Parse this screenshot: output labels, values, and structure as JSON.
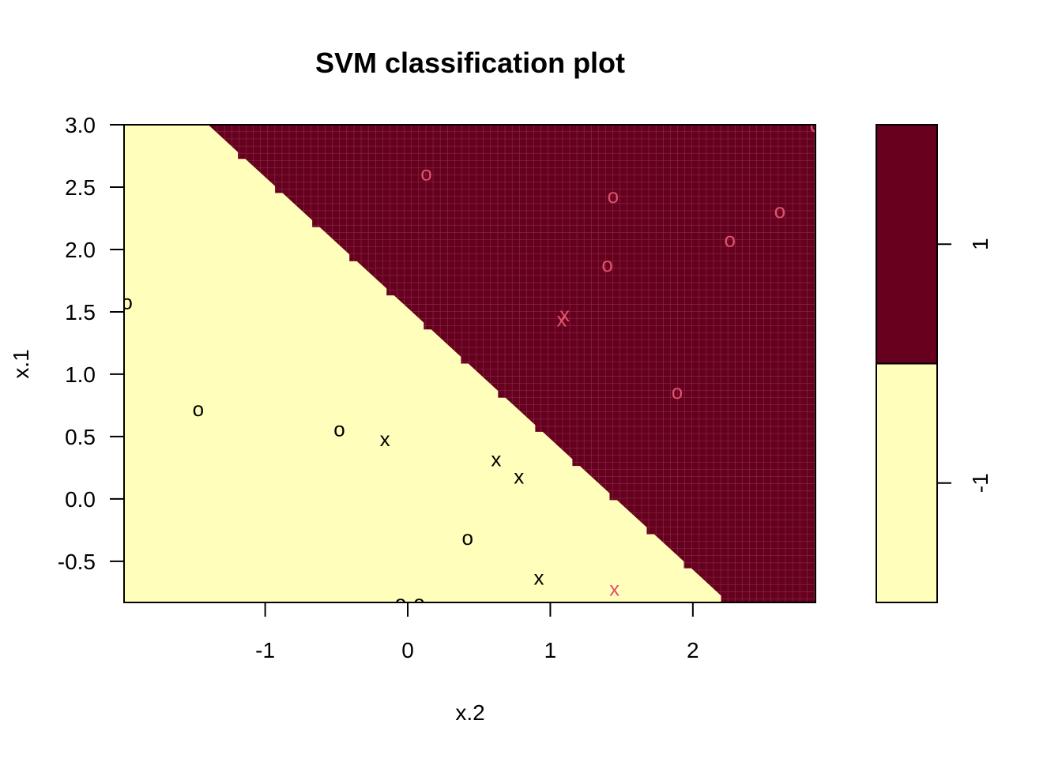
{
  "chart_data": {
    "type": "scatter",
    "title": "SVM classification plot",
    "xlabel": "x.2",
    "ylabel": "x.1",
    "xlim": [
      -1.99,
      2.86
    ],
    "ylim": [
      -0.83,
      3.0
    ],
    "xticks": [
      "-1",
      "0",
      "1",
      "2"
    ],
    "xtick_values": [
      -1,
      0,
      1,
      2
    ],
    "yticks": [
      "3.0",
      "2.5",
      "2.0",
      "1.5",
      "1.0",
      "0.5",
      "0.0",
      "-0.5"
    ],
    "ytick_values": [
      3.0,
      2.5,
      2.0,
      1.5,
      1.0,
      0.5,
      0.0,
      -0.5
    ],
    "regions": [
      {
        "class": "1",
        "color": "#67001F"
      },
      {
        "class": "-1",
        "color": "#FFFFBB"
      }
    ],
    "boundary": [
      {
        "x": -1.4,
        "y": 3.0
      },
      {
        "x": 2.25,
        "y": -0.83
      }
    ],
    "legend": {
      "placement": "right",
      "labels": [
        "1",
        "-1"
      ],
      "colors": [
        "#67001F",
        "#FFFFBB"
      ]
    },
    "series": [
      {
        "color": "#000000",
        "points": [
          {
            "x": -1.97,
            "y": 1.58,
            "marker": "o"
          },
          {
            "x": -1.47,
            "y": 0.72,
            "marker": "o"
          },
          {
            "x": -0.48,
            "y": 0.56,
            "marker": "o"
          },
          {
            "x": -0.16,
            "y": 0.48,
            "marker": "x"
          },
          {
            "x": 0.62,
            "y": 0.32,
            "marker": "x"
          },
          {
            "x": 0.78,
            "y": 0.18,
            "marker": "x"
          },
          {
            "x": 0.42,
            "y": -0.31,
            "marker": "o"
          },
          {
            "x": 0.92,
            "y": -0.63,
            "marker": "x"
          },
          {
            "x": -0.05,
            "y": -0.83,
            "marker": "o"
          },
          {
            "x": 0.08,
            "y": -0.83,
            "marker": "o"
          }
        ]
      },
      {
        "color": "#DF536B",
        "points": [
          {
            "x": 0.13,
            "y": 2.61,
            "marker": "o"
          },
          {
            "x": 1.44,
            "y": 2.43,
            "marker": "o"
          },
          {
            "x": 2.61,
            "y": 2.31,
            "marker": "o"
          },
          {
            "x": 2.26,
            "y": 2.08,
            "marker": "o"
          },
          {
            "x": 1.4,
            "y": 1.88,
            "marker": "o"
          },
          {
            "x": 1.1,
            "y": 1.48,
            "marker": "x"
          },
          {
            "x": 1.08,
            "y": 1.44,
            "marker": "x"
          },
          {
            "x": 1.89,
            "y": 0.86,
            "marker": "o"
          },
          {
            "x": 2.86,
            "y": 3.0,
            "marker": "o"
          },
          {
            "x": 1.45,
            "y": -0.72,
            "marker": "x"
          }
        ]
      }
    ]
  }
}
